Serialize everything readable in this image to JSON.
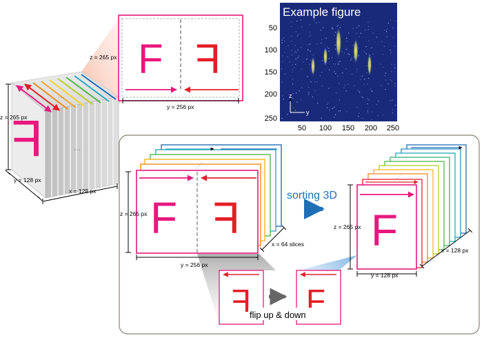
{
  "figure": {
    "title": "Example figure",
    "x_ticks": [
      "50",
      "100",
      "150",
      "200",
      "250"
    ],
    "y_ticks": [
      "50",
      "100",
      "150",
      "200",
      "250"
    ],
    "axis_z": "z",
    "axis_y": "y",
    "background_color": "#1a2a7a",
    "band_color": "#e8e25a"
  },
  "cube": {
    "z_label": "z = 265 px",
    "y_label": "y = 128 px",
    "x_label": "x = 128 px",
    "dots": "...",
    "letter": "F",
    "letter_color": "#e8177d"
  },
  "top_slice": {
    "z_label": "z = 265 px",
    "y_label": "y = 256 px",
    "left_letter": "F",
    "right_letter": "F",
    "left_color": "#e8177d",
    "right_color": "#e41e26"
  },
  "process": {
    "stack_in": {
      "z_label": "z = 265 px",
      "y_label": "y = 256 px",
      "x_label": "x = 64 slices",
      "left_letter": "F",
      "right_letter": "F"
    },
    "sorting_label": "sorting 3D",
    "sorting_color": "#1f6fb6",
    "stack_out": {
      "z_label": "z = 265 px",
      "y_label": "y = 128 px",
      "x_label": "x = 128 px",
      "letter": "F"
    },
    "flip": {
      "label": "flip up & down",
      "before_letter": "F",
      "after_letter": "F"
    }
  }
}
